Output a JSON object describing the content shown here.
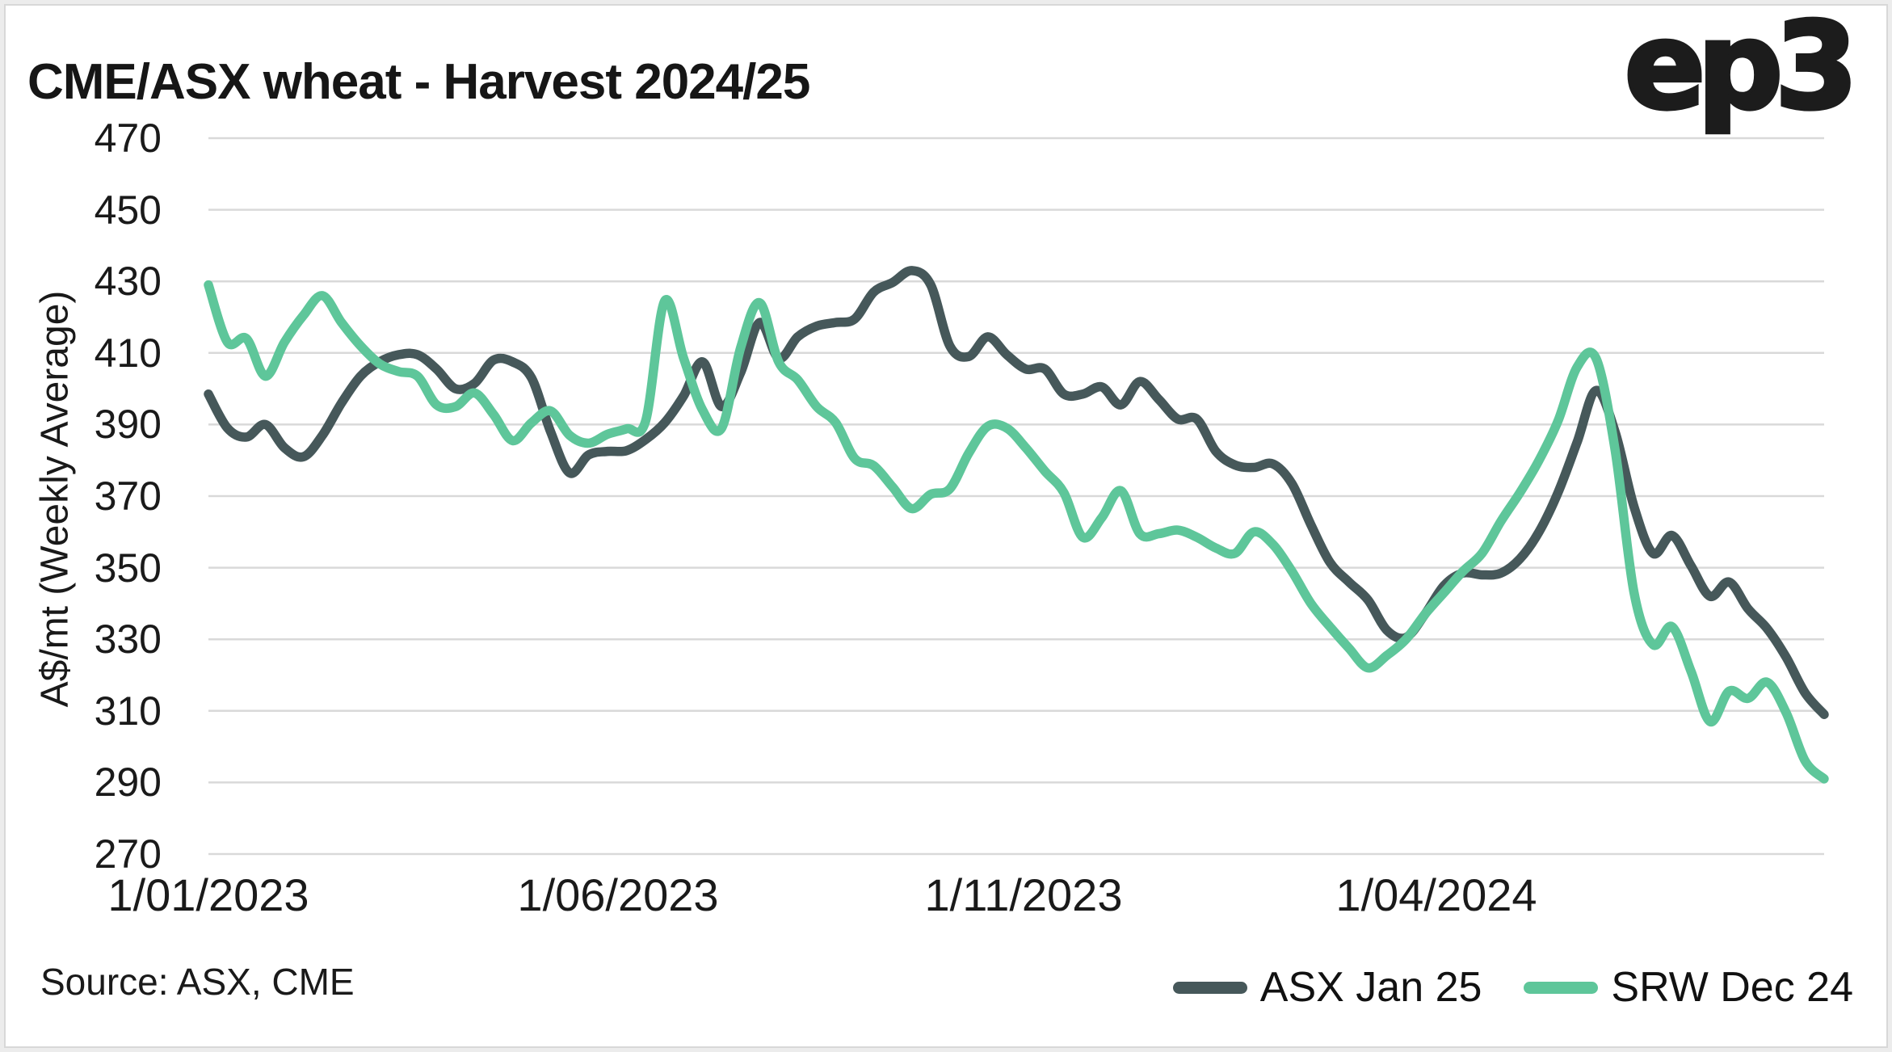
{
  "header": {
    "title": "CME/ASX wheat - Harvest 2024/25",
    "logo": "ep3"
  },
  "axes": {
    "y_label": "A$/mt (Weekly Average)"
  },
  "footer": {
    "source": "Source: ASX, CME"
  },
  "legend": {
    "items": [
      {
        "label": "ASX Jan 25",
        "color": "#46585A"
      },
      {
        "label": "SRW Dec 24",
        "color": "#5EC69A"
      }
    ]
  },
  "colors": {
    "grid": "#D9D9D9",
    "background": "#FFFFFF",
    "text": "#1A1A1A",
    "asx": "#46585A",
    "srw": "#5EC69A"
  },
  "chart_data": {
    "type": "line",
    "title": "CME/ASX wheat - Harvest 2024/25",
    "xlabel": "",
    "ylabel": "A$/mt (Weekly Average)",
    "ylim": [
      270,
      470
    ],
    "yticks": [
      470,
      450,
      430,
      410,
      390,
      370,
      350,
      330,
      310,
      290,
      270
    ],
    "grid": true,
    "legend_position": "bottom-right",
    "x_unit": "weekly averages, 1/01/2023 to 18/08/2024",
    "x_ticks": [
      {
        "label": "1/01/2023",
        "pos": 0.0
      },
      {
        "label": "1/06/2023",
        "pos": 0.2535
      },
      {
        "label": "1/11/2023",
        "pos": 0.5045
      },
      {
        "label": "1/04/2024",
        "pos": 0.76
      }
    ],
    "series": [
      {
        "name": "ASX Jan 25",
        "color": "#46585A",
        "values": [
          398.5,
          389,
          386.5,
          390,
          383.5,
          381,
          387,
          396,
          403.5,
          407.5,
          409.5,
          409.5,
          405.5,
          400,
          401.5,
          408,
          407.5,
          403,
          388,
          376.5,
          381.5,
          382.5,
          382.7,
          385.8,
          390.5,
          398,
          407.5,
          395,
          404.5,
          418.5,
          408.5,
          414.5,
          417.5,
          418.5,
          419.5,
          427,
          429.7,
          433,
          429,
          412,
          409,
          414.5,
          409.5,
          405.5,
          405.5,
          398.5,
          398.5,
          400.5,
          395.5,
          402,
          397,
          391.5,
          391.5,
          382.5,
          378.7,
          378,
          379,
          373.5,
          362,
          351.5,
          346,
          341,
          332.5,
          330.5,
          337,
          345,
          348.5,
          348,
          348.5,
          352.5,
          360,
          371,
          385,
          399.5,
          388,
          367,
          354,
          359,
          350.5,
          342,
          346,
          338.5,
          333,
          325,
          315,
          309
        ]
      },
      {
        "name": "SRW Dec 24",
        "color": "#5EC69A",
        "values": [
          429,
          413,
          414,
          403.5,
          413,
          420.5,
          426,
          418.5,
          412,
          407,
          404.8,
          403.5,
          395.5,
          395,
          398.8,
          392.8,
          385.5,
          390.5,
          393.8,
          387,
          384.8,
          387.3,
          388.8,
          391,
          424.5,
          408.5,
          394,
          389,
          411.5,
          424,
          407.5,
          402.5,
          395,
          390.5,
          380.5,
          378.5,
          372.5,
          366.5,
          370.5,
          372,
          382,
          389.5,
          389,
          383.5,
          377,
          371,
          358.5,
          364,
          371.5,
          359.5,
          359.5,
          360.5,
          358.5,
          355.5,
          354,
          360,
          356.5,
          349,
          340,
          333.5,
          327.5,
          322,
          325.5,
          330,
          337,
          343,
          349,
          354,
          363,
          371,
          380,
          391,
          406,
          408.5,
          383,
          343,
          328.5,
          333.5,
          321,
          307,
          315.5,
          313.5,
          318,
          309.5,
          296,
          291
        ]
      }
    ]
  }
}
